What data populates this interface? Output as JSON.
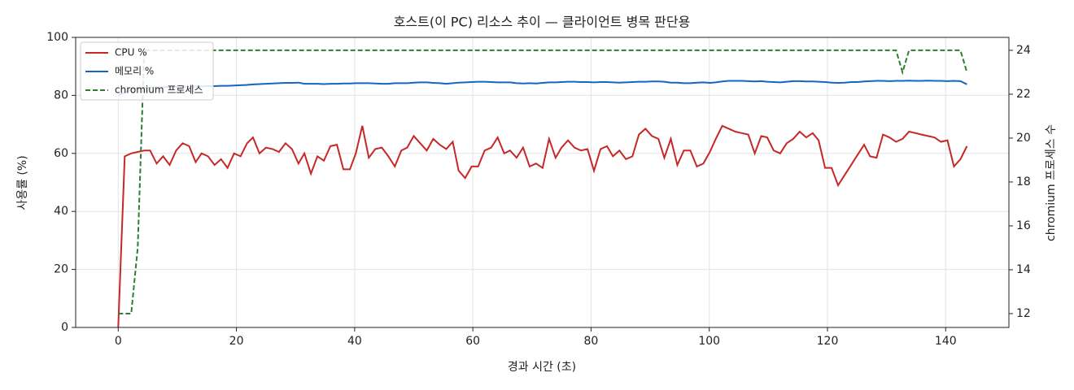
{
  "chart_data": {
    "type": "line",
    "title": "호스트(이 PC) 리소스 추이 — 클라이언트 병목 판단용",
    "x_label": "경과 시간 (초)",
    "y_label": "사용률 (%)",
    "y2_label": "chromium 프로세스 수",
    "xlim": [
      -7.2,
      150.7
    ],
    "xticks": [
      0,
      20,
      40,
      60,
      80,
      100,
      120,
      140
    ],
    "ylim": [
      0,
      100
    ],
    "yticks": [
      0,
      20,
      40,
      60,
      80,
      100
    ],
    "y2lim": [
      11.37,
      24.59
    ],
    "y2ticks": [
      12,
      14,
      16,
      18,
      20,
      22,
      24
    ],
    "grid": true,
    "legend": "upper-left",
    "x": [
      0,
      1.1,
      2.2,
      3.3,
      4.4,
      5.4,
      6.5,
      7.6,
      8.7,
      9.8,
      10.9,
      12,
      13.1,
      14.1,
      15.2,
      16.3,
      17.4,
      18.5,
      19.6,
      20.7,
      21.8,
      22.8,
      23.9,
      25,
      26.1,
      27.2,
      28.3,
      29.4,
      30.5,
      31.5,
      32.6,
      33.7,
      34.8,
      35.9,
      37,
      38.1,
      39.2,
      40.2,
      41.3,
      42.4,
      43.5,
      44.6,
      45.7,
      46.8,
      47.9,
      48.9,
      50,
      51.1,
      52.2,
      53.3,
      54.4,
      55.5,
      56.6,
      57.6,
      58.7,
      59.8,
      60.9,
      62,
      63.1,
      64.2,
      65.3,
      66.3,
      67.4,
      68.5,
      69.6,
      70.7,
      71.8,
      72.9,
      74,
      75,
      76.1,
      77.2,
      78.3,
      79.4,
      80.5,
      81.6,
      82.7,
      83.7,
      84.8,
      85.9,
      87,
      88.1,
      89.2,
      90.3,
      91.4,
      92.4,
      93.5,
      94.6,
      95.7,
      96.8,
      97.9,
      99,
      100.1,
      101.1,
      102.2,
      103.3,
      104.4,
      105.5,
      106.6,
      107.7,
      108.8,
      109.8,
      110.9,
      112,
      113.1,
      114.2,
      115.3,
      116.4,
      117.5,
      118.5,
      119.6,
      120.7,
      121.8,
      122.9,
      124,
      125.1,
      126.2,
      127.2,
      128.3,
      129.4,
      130.5,
      131.6,
      132.7,
      133.8,
      134.9,
      135.9,
      137,
      138.1,
      139.2,
      140.3,
      141.4,
      142.5,
      143.6
    ],
    "series": [
      {
        "name": "CPU %",
        "color": "#c62828",
        "linestyle": "solid",
        "axis": "y",
        "values": [
          0,
          59,
          60,
          60.5,
          61,
          61,
          56.5,
          59,
          56,
          61,
          63.5,
          62.5,
          57,
          60,
          59,
          56,
          58,
          55,
          60,
          59,
          63.5,
          65.5,
          60,
          62,
          61.5,
          60.5,
          63.5,
          61.5,
          56.5,
          60,
          53,
          59,
          57.5,
          62.5,
          63,
          54.5,
          54.5,
          60,
          69.5,
          58.5,
          61.5,
          62,
          59,
          55.5,
          61,
          62,
          66,
          63.5,
          61,
          65,
          63,
          61.5,
          64,
          54,
          51.5,
          55.5,
          55.5,
          61,
          62,
          65.5,
          60,
          61,
          58.5,
          62,
          55.5,
          56.5,
          55,
          65,
          58.5,
          62,
          64.5,
          62,
          61,
          61.5,
          54,
          61.5,
          62.5,
          59,
          61,
          58,
          59,
          66.5,
          68.5,
          66,
          65,
          58.5,
          65,
          56,
          61,
          61,
          55.5,
          56.5,
          60.5,
          65,
          69.5,
          68.5,
          67.5,
          67,
          66.5,
          60,
          66,
          65.5,
          61,
          60,
          63.5,
          65,
          67.5,
          65.5,
          67,
          64.5,
          55,
          55,
          49,
          52.5,
          56,
          59.5,
          63,
          59,
          58.5,
          66.5,
          65.5,
          64,
          65,
          67.5,
          67,
          66.5,
          66,
          65.5,
          64,
          64.5,
          55.5,
          58,
          62.5
        ]
      },
      {
        "name": "메모리 %",
        "color": "#1565c0",
        "linestyle": "solid",
        "axis": "y",
        "values": [
          80,
          81,
          82,
          82.5,
          82.6,
          82.7,
          82.8,
          82.8,
          82.9,
          82.9,
          83,
          83,
          83.1,
          83.1,
          83.2,
          83.2,
          83.3,
          83.3,
          83.4,
          83.5,
          83.6,
          83.8,
          83.9,
          84,
          84.1,
          84.2,
          84.3,
          84.3,
          84.4,
          84,
          84,
          84,
          83.9,
          84,
          84,
          84.1,
          84.1,
          84.2,
          84.2,
          84.2,
          84.1,
          84,
          84,
          84.2,
          84.2,
          84.2,
          84.4,
          84.5,
          84.5,
          84.3,
          84.2,
          84,
          84.2,
          84.4,
          84.5,
          84.6,
          84.7,
          84.7,
          84.6,
          84.5,
          84.5,
          84.5,
          84.2,
          84.1,
          84.2,
          84.1,
          84.3,
          84.5,
          84.5,
          84.6,
          84.7,
          84.7,
          84.6,
          84.6,
          84.5,
          84.6,
          84.6,
          84.5,
          84.4,
          84.5,
          84.6,
          84.7,
          84.7,
          84.8,
          84.8,
          84.7,
          84.4,
          84.4,
          84.2,
          84.2,
          84.4,
          84.5,
          84.3,
          84.5,
          84.8,
          85,
          85,
          85,
          84.9,
          84.8,
          84.9,
          84.7,
          84.6,
          84.5,
          84.7,
          84.9,
          84.9,
          84.8,
          84.8,
          84.7,
          84.6,
          84.4,
          84.3,
          84.4,
          84.6,
          84.6,
          84.8,
          84.9,
          85,
          85,
          84.9,
          85,
          85,
          85.1,
          85,
          85,
          85.1,
          85,
          85,
          84.9,
          85,
          84.9,
          83.8
        ]
      },
      {
        "name": "chromium 프로세스",
        "color": "#2e7d32",
        "linestyle": "dashed",
        "axis": "y2",
        "values": [
          12,
          12,
          12,
          15,
          24,
          24,
          24,
          24,
          24,
          24,
          24,
          24,
          24,
          24,
          24,
          24,
          24,
          24,
          24,
          24,
          24,
          24,
          24,
          24,
          24,
          24,
          24,
          24,
          24,
          24,
          24,
          24,
          24,
          24,
          24,
          24,
          24,
          24,
          24,
          24,
          24,
          24,
          24,
          24,
          24,
          24,
          24,
          24,
          24,
          24,
          24,
          24,
          24,
          24,
          24,
          24,
          24,
          24,
          24,
          24,
          24,
          24,
          24,
          24,
          24,
          24,
          24,
          24,
          24,
          24,
          24,
          24,
          24,
          24,
          24,
          24,
          24,
          24,
          24,
          24,
          24,
          24,
          24,
          24,
          24,
          24,
          24,
          24,
          24,
          24,
          24,
          24,
          24,
          24,
          24,
          24,
          24,
          24,
          24,
          24,
          24,
          24,
          24,
          24,
          24,
          24,
          24,
          24,
          24,
          24,
          24,
          24,
          24,
          24,
          24,
          24,
          24,
          24,
          24,
          24,
          24,
          24,
          23,
          24,
          24,
          24,
          24,
          24,
          24,
          24,
          24,
          24,
          23
        ]
      }
    ]
  }
}
